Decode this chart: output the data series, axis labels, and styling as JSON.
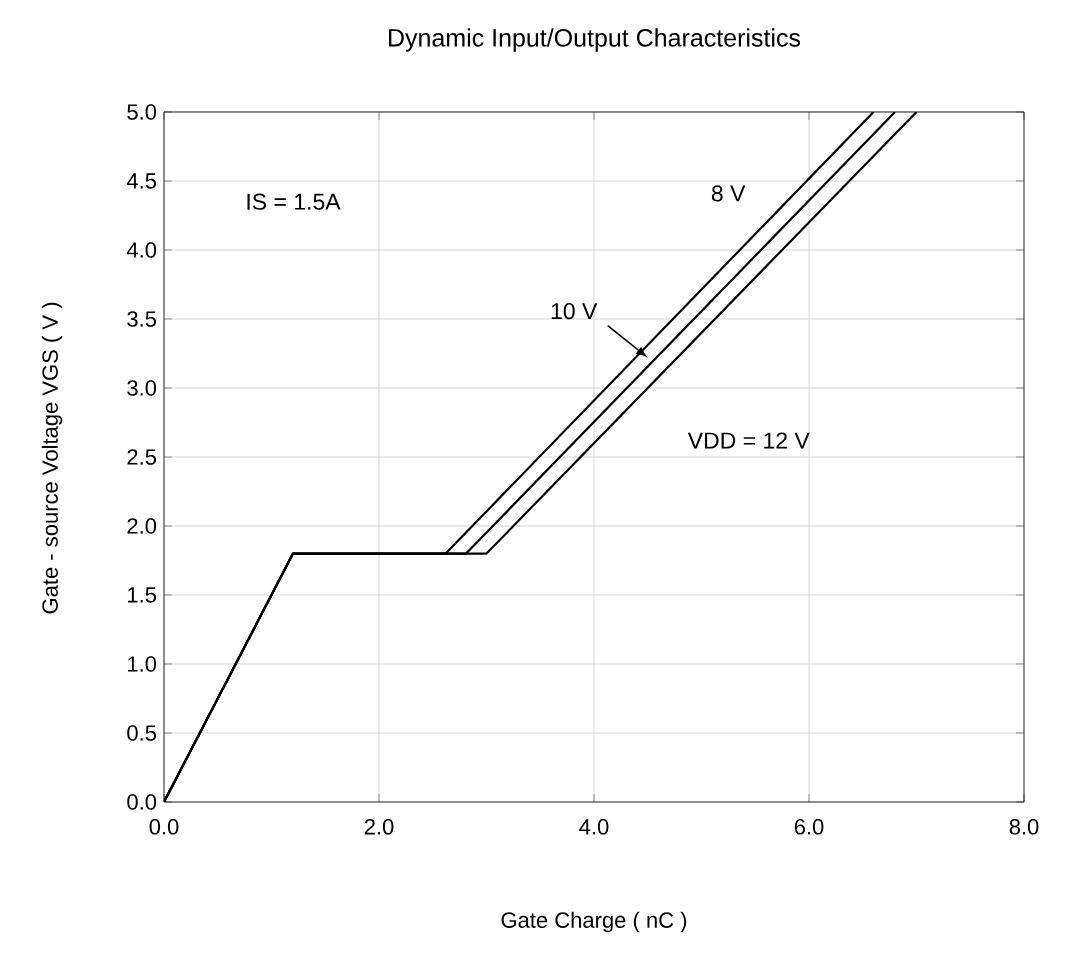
{
  "chart_data": {
    "type": "line",
    "title": "Dynamic Input/Output Characteristics",
    "xlabel": "Gate Charge  ( nC )",
    "ylabel": "Gate - source Voltage VGS ( V )",
    "series": [
      {
        "color": "#000000",
        "x": [
          0,
          1.2,
          2.62,
          6.6
        ],
        "values": [
          0,
          1.8,
          1.8,
          5.0
        ]
      },
      {
        "color": "#000000",
        "x": [
          0,
          1.2,
          2.81,
          6.8
        ],
        "values": [
          0,
          1.8,
          1.8,
          5.0
        ]
      },
      {
        "color": "#000000",
        "x": [
          0,
          1.2,
          3.0,
          7.0
        ],
        "values": [
          0,
          1.8,
          1.8,
          5.0
        ]
      }
    ],
    "annotations": [
      "8 V",
      {
        "text": "10 V",
        "x": 4.5,
        "y": 3.22
      },
      "VDD = 12 V",
      "IS = 1.5A"
    ],
    "xlim": [
      0,
      8
    ],
    "ylim": [
      0,
      5
    ],
    "xticks": [
      {
        "value": 0,
        "label": "0.0"
      },
      {
        "value": 2,
        "label": "2.0"
      },
      {
        "value": 4,
        "label": "4.0"
      },
      {
        "value": 6,
        "label": "6.0"
      },
      {
        "value": 8,
        "label": "8.0"
      }
    ],
    "yticks": [
      {
        "value": 0,
        "label": "0.0"
      },
      {
        "value": 0.5,
        "label": "0.5"
      },
      {
        "value": 1,
        "label": "1.0"
      },
      {
        "value": 1.5,
        "label": "1.5"
      },
      {
        "value": 2,
        "label": "2.0"
      },
      {
        "value": 2.5,
        "label": "2.5"
      },
      {
        "value": 3,
        "label": "3.0"
      },
      {
        "value": 3.5,
        "label": "3.5"
      },
      {
        "value": 4,
        "label": "4.0"
      },
      {
        "value": 4.5,
        "label": "4.5"
      },
      {
        "value": 5,
        "label": "5.0"
      }
    ],
    "grid": true,
    "marker": "none",
    "line_style": "solid"
  }
}
